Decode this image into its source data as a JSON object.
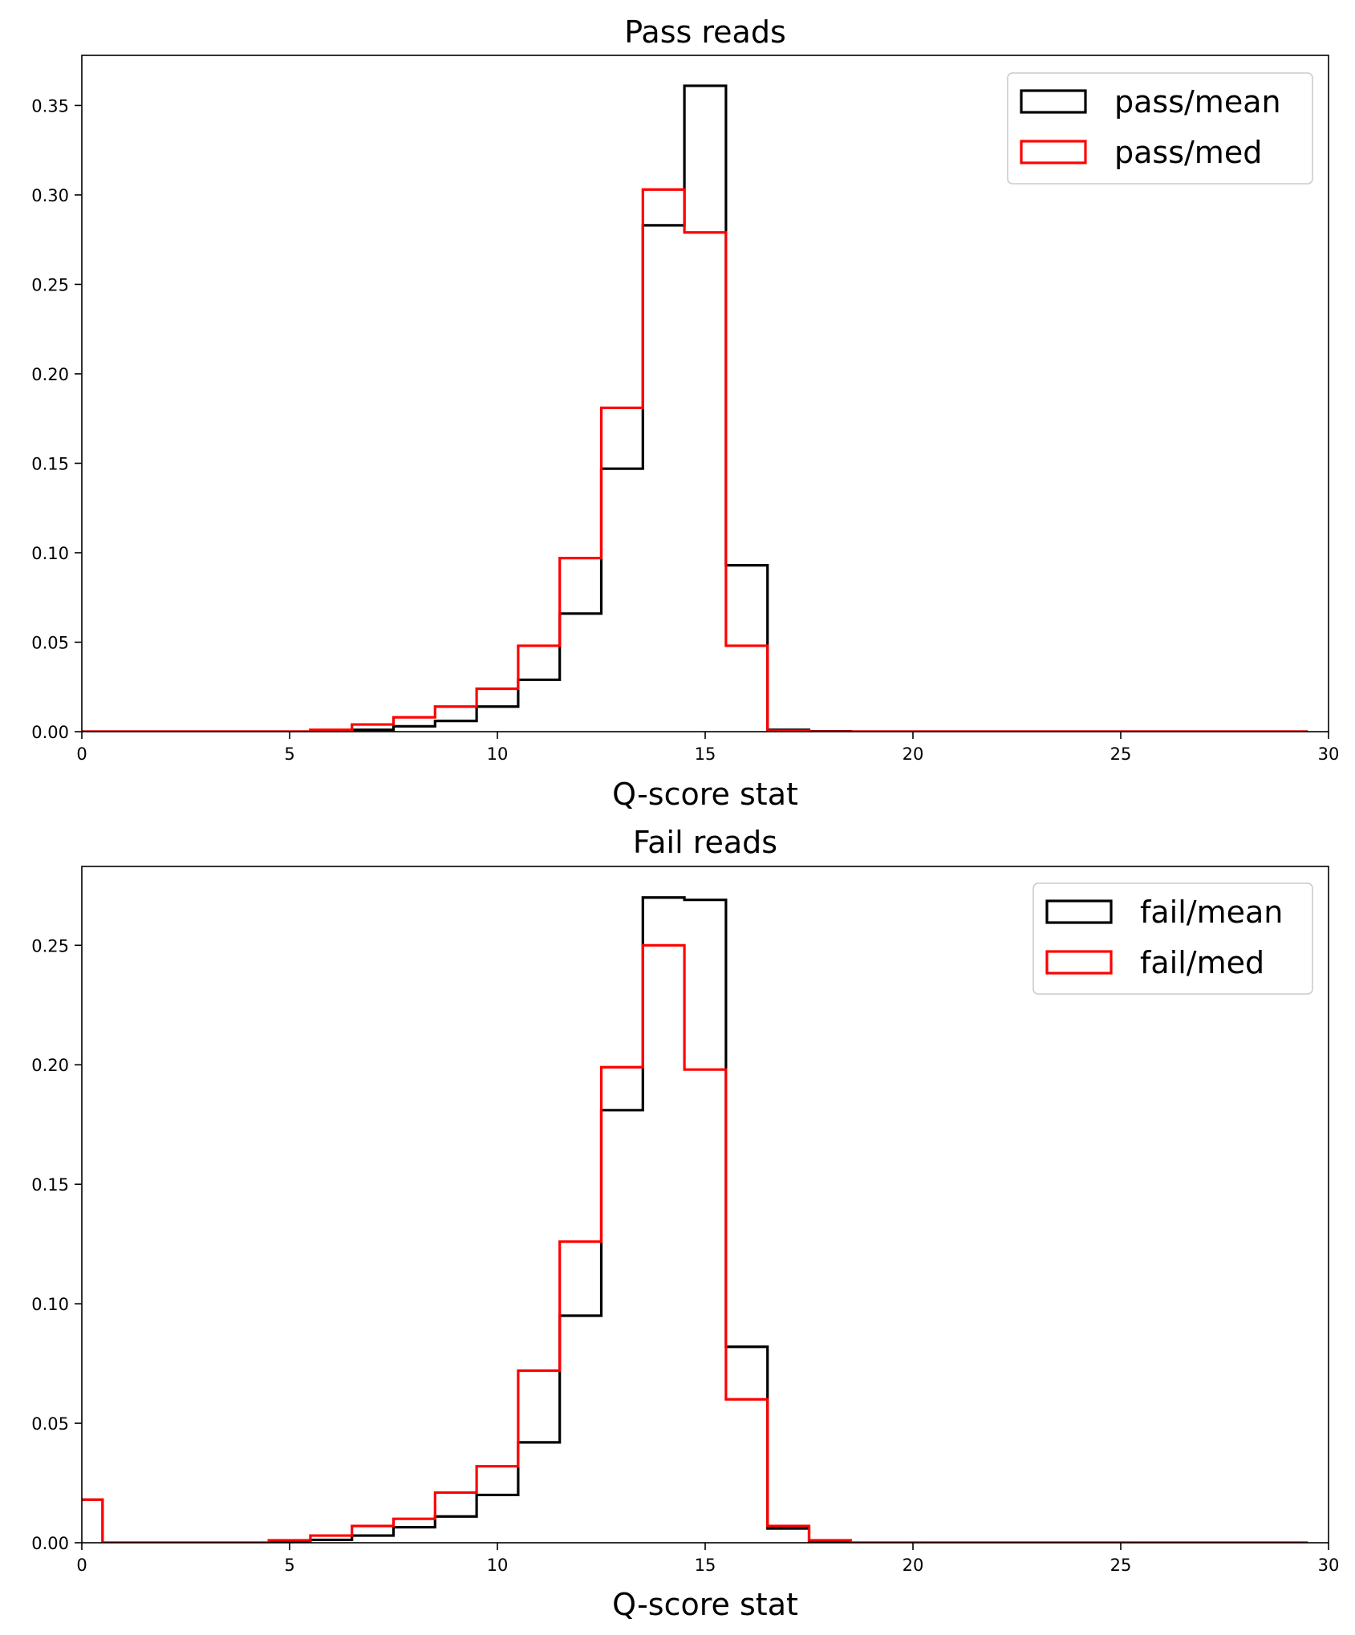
{
  "colors": {
    "mean": "#000000",
    "med": "#ff0000"
  },
  "chart_data": [
    {
      "type": "histogram-step",
      "title": "Pass reads",
      "xlabel": "Q-score stat",
      "ylabel": "",
      "xlim": [
        0,
        30
      ],
      "ylim": [
        0,
        0.378
      ],
      "xticks": [
        0,
        5,
        10,
        15,
        20,
        25,
        30
      ],
      "xtick_labels": [
        "0",
        "5",
        "10",
        "15",
        "20",
        "25",
        "30"
      ],
      "yticks": [
        0,
        0.05,
        0.1,
        0.15,
        0.2,
        0.25,
        0.3,
        0.35
      ],
      "ytick_labels": [
        "0.00",
        "0.05",
        "0.10",
        "0.15",
        "0.20",
        "0.25",
        "0.30",
        "0.35"
      ],
      "grid": false,
      "legend_position": "top-right",
      "bin_edges": [
        -0.5,
        0.5,
        1.5,
        2.5,
        3.5,
        4.5,
        5.5,
        6.5,
        7.5,
        8.5,
        9.5,
        10.5,
        11.5,
        12.5,
        13.5,
        14.5,
        15.5,
        16.5,
        17.5,
        18.5,
        19.5,
        20.5,
        21.5,
        22.5,
        23.5,
        24.5,
        25.5,
        26.5,
        27.5,
        28.5,
        29.5
      ],
      "series": [
        {
          "name": "pass/mean",
          "color": "#000000",
          "values": [
            0,
            0,
            0,
            0,
            0,
            0,
            0.0005,
            0.001,
            0.003,
            0.006,
            0.014,
            0.029,
            0.066,
            0.147,
            0.283,
            0.361,
            0.093,
            0.001,
            0.0002,
            0,
            0,
            0,
            0,
            0,
            0,
            0,
            0,
            0,
            0,
            0
          ]
        },
        {
          "name": "pass/med",
          "color": "#ff0000",
          "values": [
            0,
            0,
            0,
            0,
            0,
            0,
            0.001,
            0.004,
            0.008,
            0.014,
            0.024,
            0.048,
            0.097,
            0.181,
            0.303,
            0.279,
            0.048,
            0.0005,
            0,
            0,
            0,
            0,
            0,
            0,
            0,
            0,
            0,
            0,
            0,
            0
          ]
        }
      ]
    },
    {
      "type": "histogram-step",
      "title": "Fail reads",
      "xlabel": "Q-score stat",
      "ylabel": "",
      "xlim": [
        0,
        30
      ],
      "ylim": [
        0,
        0.283
      ],
      "xticks": [
        0,
        5,
        10,
        15,
        20,
        25,
        30
      ],
      "xtick_labels": [
        "0",
        "5",
        "10",
        "15",
        "20",
        "25",
        "30"
      ],
      "yticks": [
        0,
        0.05,
        0.1,
        0.15,
        0.2,
        0.25
      ],
      "ytick_labels": [
        "0.00",
        "0.05",
        "0.10",
        "0.15",
        "0.20",
        "0.25"
      ],
      "grid": false,
      "legend_position": "top-right",
      "bin_edges": [
        -0.5,
        0.5,
        1.5,
        2.5,
        3.5,
        4.5,
        5.5,
        6.5,
        7.5,
        8.5,
        9.5,
        10.5,
        11.5,
        12.5,
        13.5,
        14.5,
        15.5,
        16.5,
        17.5,
        18.5,
        19.5,
        20.5,
        21.5,
        22.5,
        23.5,
        24.5,
        25.5,
        26.5,
        27.5,
        28.5,
        29.5
      ],
      "series": [
        {
          "name": "fail/mean",
          "color": "#000000",
          "values": [
            0.018,
            0,
            0,
            0,
            0,
            0.0005,
            0.0012,
            0.003,
            0.0065,
            0.011,
            0.02,
            0.042,
            0.095,
            0.181,
            0.27,
            0.269,
            0.082,
            0.006,
            0.0005,
            0,
            0,
            0,
            0,
            0,
            0,
            0,
            0,
            0,
            0,
            0
          ]
        },
        {
          "name": "fail/med",
          "color": "#ff0000",
          "values": [
            0.018,
            0,
            0,
            0,
            0,
            0.001,
            0.003,
            0.007,
            0.01,
            0.021,
            0.032,
            0.072,
            0.126,
            0.199,
            0.25,
            0.198,
            0.06,
            0.007,
            0.001,
            0,
            0,
            0,
            0,
            0,
            0,
            0,
            0,
            0,
            0,
            0
          ]
        }
      ]
    }
  ]
}
